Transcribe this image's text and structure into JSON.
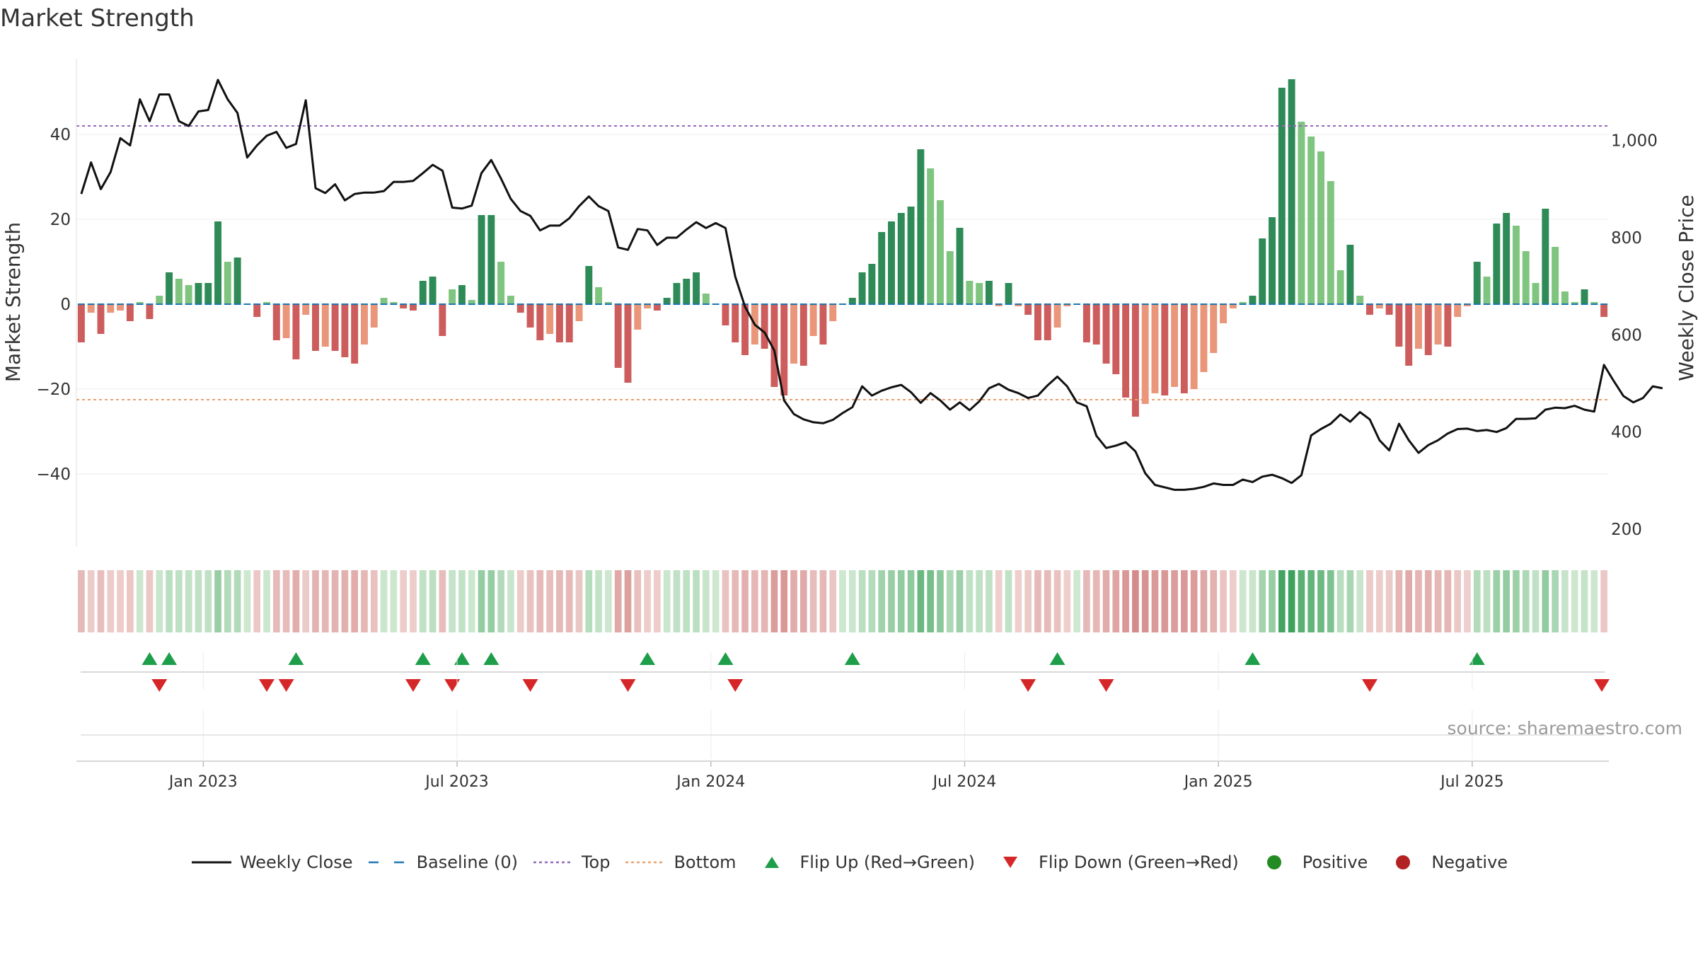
{
  "chart_data": {
    "type": "bar",
    "title": "Market Strength",
    "ylabel": "Market Strength",
    "ylabel_right": "Weekly Close Price",
    "ylim": [
      -57,
      58
    ],
    "ylim_right": [
      165,
      1170
    ],
    "yticks": [
      40,
      20,
      0,
      -20,
      -40
    ],
    "yticks_right": [
      1000,
      800,
      600,
      400,
      200
    ],
    "ytick_labels": [
      "40",
      "20",
      "0",
      "−20",
      "−40"
    ],
    "ytick_labels_right": [
      "1,000",
      "800",
      "600",
      "400",
      "200"
    ],
    "top_threshold": 42,
    "bottom_threshold": -22.5,
    "x_start": "2022-10-03",
    "x_tick_weeks": [
      13,
      39,
      65,
      91,
      117,
      143
    ],
    "x_tick_labels": [
      "Jan 2023",
      "Jul 2023",
      "Jan 2024",
      "Jul 2024",
      "Jan 2025",
      "Jul 2025"
    ],
    "series": [
      {
        "name": "Market Strength",
        "values": [
          -9,
          -2,
          -7,
          -2,
          -1.5,
          -4,
          0.5,
          -3.5,
          2,
          7.5,
          6,
          4.5,
          5,
          5,
          19.5,
          10,
          11,
          0,
          -3,
          0.5,
          -8.5,
          -8,
          -13,
          -2.5,
          -11,
          -10,
          -11,
          -12.5,
          -14,
          -9.5,
          -5.5,
          1.5,
          0.5,
          -1,
          -1.5,
          5.5,
          6.5,
          -7.5,
          3.5,
          4.5,
          1,
          21,
          21,
          10,
          2,
          -2,
          -5.5,
          -8.5,
          -7,
          -9,
          -9,
          -4,
          9,
          4,
          0.5,
          -15,
          -18.5,
          -6,
          -1,
          -1.5,
          1.5,
          5,
          6,
          7.5,
          2.5,
          0,
          -5,
          -9,
          -12,
          -9.5,
          -10.5,
          -19.5,
          -21.5,
          -14,
          -14.5,
          -7.5,
          -9.5,
          -4,
          0,
          1.5,
          7.5,
          9.5,
          17,
          19.5,
          21.5,
          23,
          36.5,
          32,
          24.5,
          12.5,
          18,
          5.5,
          5,
          5.5,
          -0.5,
          5,
          -0.5,
          -2.5,
          -8.5,
          -8.5,
          -5.5,
          -0.5,
          0,
          -9,
          -9.5,
          -14,
          -16.5,
          -22,
          -26.5,
          -23.5,
          -21,
          -21.5,
          -19.5,
          -21,
          -20,
          -16,
          -11.5,
          -4.5,
          -1,
          0.5,
          2,
          15.5,
          20.5,
          51,
          53,
          43,
          39.5,
          36,
          29,
          8,
          14,
          2,
          -2.5,
          -1,
          -2.5,
          -10,
          -14.5,
          -10.5,
          -12,
          -9.5,
          -10,
          -3,
          -0.5,
          10,
          6.5,
          19,
          21.5,
          18.5,
          12.5,
          5,
          22.5,
          13.5,
          3,
          0.5,
          3.5,
          0.5,
          -3
        ]
      },
      {
        "name": "Weekly Close",
        "values": [
          890,
          955,
          900,
          935,
          1005,
          990,
          1085,
          1040,
          1095,
          1095,
          1040,
          1030,
          1060,
          1063,
          1125,
          1085,
          1057,
          965,
          990,
          1010,
          1018,
          985,
          993,
          1083,
          902,
          892,
          910,
          877,
          890,
          893,
          893,
          896,
          915,
          915,
          917,
          933,
          950,
          938,
          862,
          860,
          866,
          933,
          960,
          922,
          880,
          855,
          845,
          815,
          825,
          825,
          840,
          865,
          885,
          865,
          855,
          780,
          775,
          818,
          815,
          785,
          800,
          800,
          817,
          832,
          820,
          830,
          820,
          720,
          658,
          621,
          605,
          568,
          465,
          437,
          426,
          420,
          418,
          425,
          439,
          451,
          494,
          475,
          485,
          492,
          497,
          482,
          460,
          480,
          465,
          446,
          461,
          445,
          463,
          490,
          499,
          487,
          480,
          470,
          475,
          496,
          514,
          494,
          461,
          453,
          392,
          367,
          372,
          379,
          360,
          315,
          291,
          286,
          281,
          281,
          283,
          287,
          294,
          291,
          291,
          302,
          297,
          308,
          312,
          305,
          295,
          311,
          393,
          406,
          417,
          436,
          421,
          441,
          426,
          383,
          362,
          417,
          383,
          357,
          373,
          383,
          397,
          406,
          407,
          402,
          404,
          400,
          408,
          427,
          427,
          428,
          446,
          450,
          449,
          454,
          446,
          442,
          538,
          505,
          474,
          461,
          470,
          494,
          490
        ]
      }
    ],
    "flip_up_weeks": [
      7,
      9,
      22,
      35,
      39,
      42,
      58,
      66,
      79,
      100,
      120,
      143
    ],
    "flip_down_weeks": [
      8,
      19,
      21,
      34,
      38,
      46,
      56,
      67,
      97,
      105,
      132,
      157
    ],
    "legend": {
      "items": [
        {
          "label": "Weekly Close",
          "color": "#111111"
        },
        {
          "label": "Baseline (0)",
          "color": "#1f77b4"
        },
        {
          "label": "Top",
          "color": "#9467bd"
        },
        {
          "label": "Bottom",
          "color": "#e8a070"
        },
        {
          "label": "Flip Up (Red→Green)",
          "color": "#1e9e4a"
        },
        {
          "label": "Flip Down (Green→Red)",
          "color": "#d62728"
        },
        {
          "label": "Positive",
          "color": "#228b22"
        },
        {
          "label": "Negative",
          "color": "#b22222"
        }
      ]
    },
    "source": "source: sharemaestro.com"
  }
}
